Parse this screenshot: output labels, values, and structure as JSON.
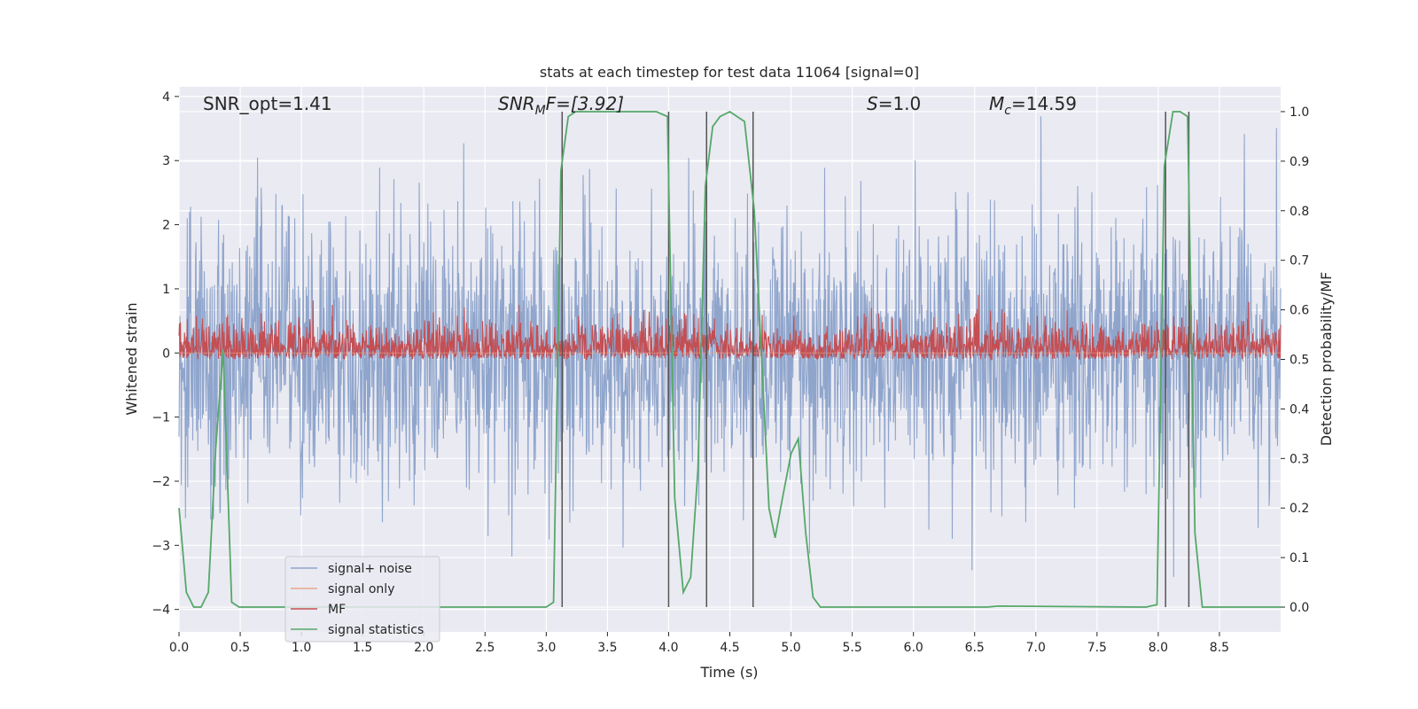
{
  "chart_data": {
    "type": "line",
    "title": "stats at each timestep for test data 11064 [signal=0]",
    "xlabel": "Time (s)",
    "ylabel_left": "Whitened strain",
    "ylabel_right": "Detection probability/MF",
    "xlim": [
      0,
      9.0
    ],
    "ylim_left": [
      -4.35,
      4.15
    ],
    "ylim_right": [
      -0.05,
      1.05
    ],
    "x_ticks": [
      0.0,
      0.5,
      1.0,
      1.5,
      2.0,
      2.5,
      3.0,
      3.5,
      4.0,
      4.5,
      5.0,
      5.5,
      6.0,
      6.5,
      7.0,
      7.5,
      8.0,
      8.5
    ],
    "x_tick_labels": [
      "0.0",
      "0.5",
      "1.0",
      "1.5",
      "2.0",
      "2.5",
      "3.0",
      "3.5",
      "4.0",
      "4.5",
      "5.0",
      "5.5",
      "6.0",
      "6.5",
      "7.0",
      "7.5",
      "8.0",
      "8.5"
    ],
    "y_ticks_left": [
      -4,
      -3,
      -2,
      -1,
      0,
      1,
      2,
      3,
      4
    ],
    "y_tick_labels_left": [
      "−4",
      "−3",
      "−2",
      "−1",
      "0",
      "1",
      "2",
      "3",
      "4"
    ],
    "y_ticks_right": [
      0.0,
      0.1,
      0.2,
      0.3,
      0.4,
      0.5,
      0.6,
      0.7,
      0.8,
      0.9,
      1.0
    ],
    "y_tick_labels_right": [
      "0.0",
      "0.1",
      "0.2",
      "0.3",
      "0.4",
      "0.5",
      "0.6",
      "0.7",
      "0.8",
      "0.9",
      "1.0"
    ],
    "grid": true,
    "legend_position": "lower-left",
    "annotations": {
      "snr_opt": "SNR_opt=1.41",
      "snr_mf_base": "SNR",
      "snr_mf_sub": "M",
      "snr_mf_rest": "F=[3.92]",
      "s_var": "S",
      "s_rest": "=1.0",
      "mc_var": "M",
      "mc_sub": "c",
      "mc_rest": "=14.59"
    },
    "series": [
      {
        "name": "signal+ noise",
        "color": "#8fa5cc",
        "description_range": [
          -4.0,
          3.8
        ],
        "center": 0.0,
        "std": 1.0
      },
      {
        "name": "signal only",
        "color": "#e8a589",
        "values_constant": 0
      },
      {
        "name": "MF",
        "color": "#c44e52",
        "axis": "right",
        "center": 0.53,
        "range": [
          0.5,
          0.63
        ]
      },
      {
        "name": "signal statistics",
        "color": "#55a868",
        "axis": "right",
        "x": [
          0.0,
          0.06,
          0.12,
          0.18,
          0.24,
          0.3,
          0.36,
          0.43,
          0.49,
          0.55,
          1.0,
          2.0,
          3.0,
          3.06,
          3.12,
          3.18,
          3.24,
          3.5,
          3.9,
          3.99,
          4.05,
          4.12,
          4.18,
          4.24,
          4.3,
          4.36,
          4.42,
          4.5,
          4.62,
          4.7,
          4.76,
          4.82,
          4.87,
          4.93,
          5.0,
          5.06,
          5.12,
          5.18,
          5.24,
          5.5,
          6.6,
          6.7,
          7.9,
          7.99,
          8.05,
          8.12,
          8.18,
          8.24,
          8.3,
          8.36,
          8.5,
          9.0
        ],
        "values": [
          0.2,
          0.03,
          0.0,
          0.0,
          0.03,
          0.32,
          0.52,
          0.01,
          0.0,
          0.0,
          0.0,
          0.0,
          0.0,
          0.01,
          0.88,
          0.99,
          1.0,
          1.0,
          1.0,
          0.99,
          0.22,
          0.03,
          0.06,
          0.28,
          0.85,
          0.97,
          0.99,
          1.0,
          0.98,
          0.8,
          0.5,
          0.2,
          0.14,
          0.22,
          0.31,
          0.34,
          0.15,
          0.02,
          0.0,
          0.0,
          0.0,
          0.002,
          0.0,
          0.005,
          0.89,
          1.0,
          1.0,
          0.99,
          0.15,
          0.0,
          0.0,
          0.0
        ]
      }
    ],
    "vertical_markers": [
      3.13,
      4.0,
      4.31,
      4.69,
      8.06,
      8.25
    ],
    "vertical_marker_color": "#555555",
    "colors": {
      "plot_bg": "#eaeaf2",
      "grid": "#ffffff",
      "text": "#262626"
    }
  }
}
